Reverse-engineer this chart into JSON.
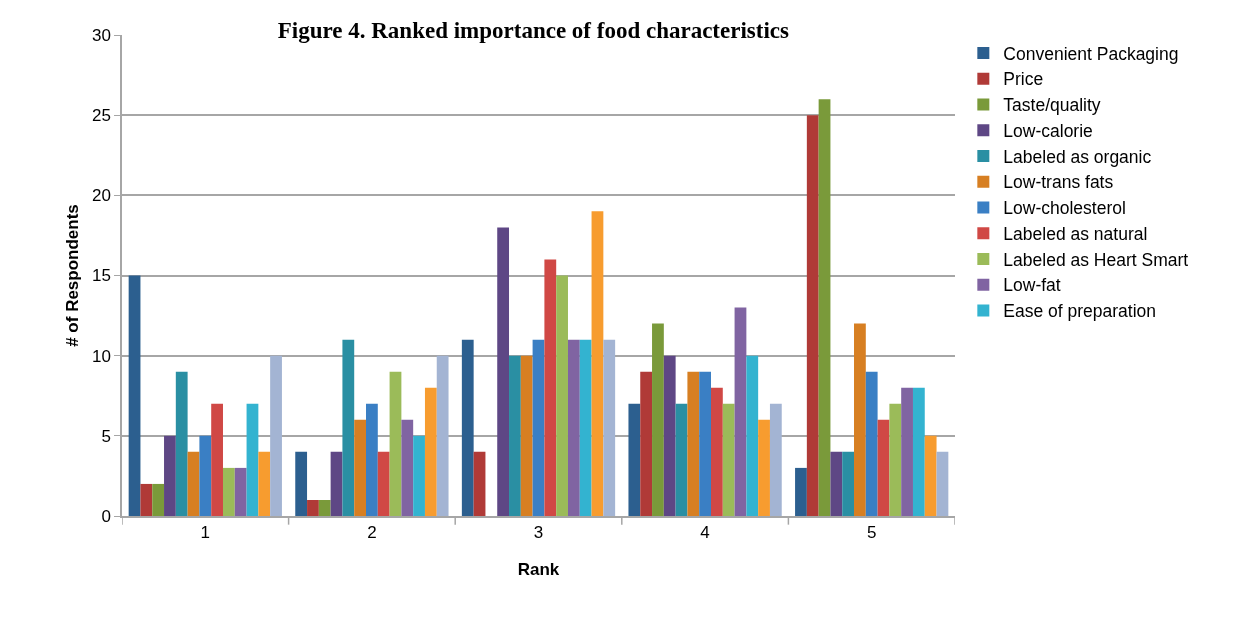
{
  "chart_data": {
    "type": "bar",
    "title": "Figure 4. Ranked importance of food characteristics",
    "xlabel": "Rank",
    "ylabel": "# of Respondents",
    "categories": [
      "1",
      "2",
      "3",
      "4",
      "5"
    ],
    "series": [
      {
        "name": "Convenient Packaging",
        "color": "#2c5f8f",
        "values": [
          15,
          4,
          11,
          7,
          3
        ]
      },
      {
        "name": "Price",
        "color": "#b03a37",
        "values": [
          2,
          1,
          4,
          9,
          25
        ]
      },
      {
        "name": "Taste/quality",
        "color": "#7a9a3a",
        "values": [
          2,
          1,
          0,
          12,
          26
        ]
      },
      {
        "name": "Low-calorie",
        "color": "#5e4785",
        "values": [
          5,
          4,
          18,
          10,
          4
        ]
      },
      {
        "name": "Labeled as organic",
        "color": "#2a8fa3",
        "values": [
          9,
          11,
          10,
          7,
          4
        ]
      },
      {
        "name": "Low-trans fats",
        "color": "#d77f22",
        "values": [
          4,
          6,
          10,
          9,
          12
        ]
      },
      {
        "name": "Low-cholesterol",
        "color": "#3a7fc4",
        "values": [
          5,
          7,
          11,
          9,
          9
        ]
      },
      {
        "name": "Labeled as natural",
        "color": "#d04845",
        "values": [
          7,
          4,
          16,
          8,
          6
        ]
      },
      {
        "name": "Labeled as Heart Smart",
        "color": "#9bbb59",
        "values": [
          3,
          9,
          15,
          7,
          7
        ]
      },
      {
        "name": "Low-fat",
        "color": "#8064a2",
        "values": [
          3,
          6,
          11,
          13,
          8
        ]
      },
      {
        "name": "Ease of preparation",
        "color": "#33b3d0",
        "values": [
          7,
          5,
          11,
          10,
          8
        ]
      },
      {
        "color": "#f79c2f",
        "values": [
          4,
          8,
          19,
          6,
          5
        ]
      },
      {
        "color": "#a3b4d3",
        "values": [
          10,
          10,
          11,
          7,
          4
        ]
      }
    ],
    "ylim": [
      0,
      30
    ],
    "yticks": [
      0,
      5,
      10,
      15,
      20,
      25,
      30
    ],
    "grid": "y",
    "legend": "right"
  }
}
